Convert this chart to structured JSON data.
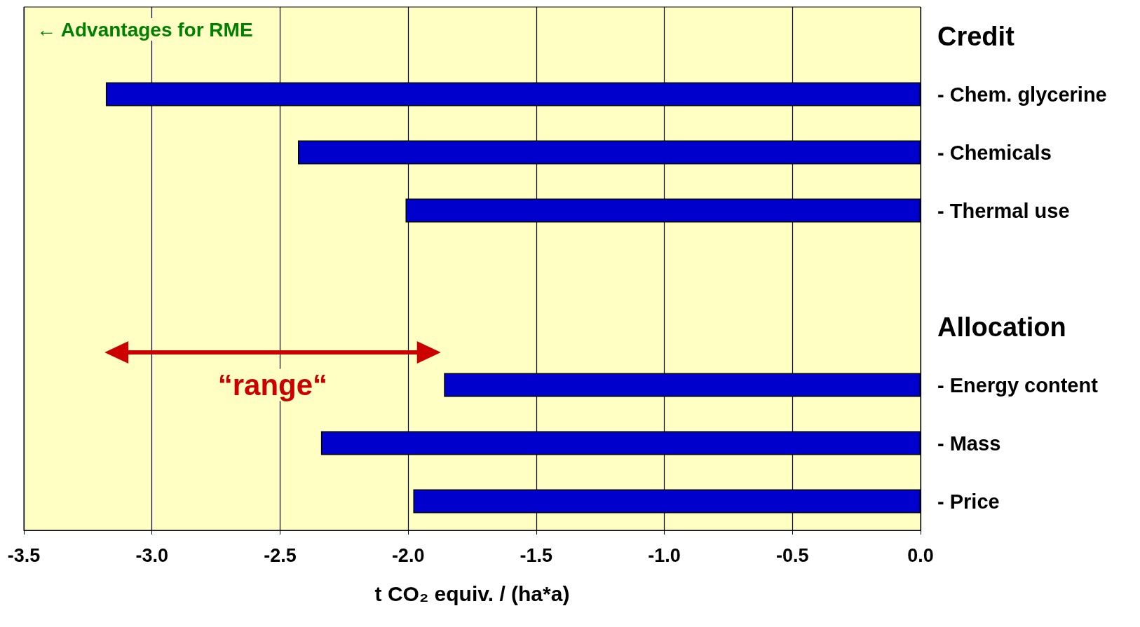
{
  "chart_data": {
    "type": "bar",
    "orientation": "horizontal",
    "categories": [
      "Credit",
      "- Chem. glycerine",
      "- Chemicals",
      "- Thermal use",
      null,
      "Allocation",
      "- Energy content",
      "- Mass",
      "- Price"
    ],
    "values": [
      null,
      -3.18,
      -2.43,
      -2.01,
      null,
      null,
      -1.86,
      -2.34,
      -1.98
    ],
    "color": "#0000cc",
    "xlim": [
      -3.5,
      0
    ],
    "xticks": [
      -3.5,
      {
        "value": -3,
        "label": "-3.0"
      },
      -2.5,
      {
        "value": -2,
        "label": "-2.0"
      },
      -1.5,
      {
        "value": -1,
        "label": "-1.0"
      },
      -0.5,
      {
        "value": 0,
        "label": "0.0"
      }
    ],
    "xlabel": "t CO₂ equiv. / (ha*a)",
    "grid": "x",
    "annotations": [
      "← Advantages for RME",
      "“range“"
    ]
  }
}
